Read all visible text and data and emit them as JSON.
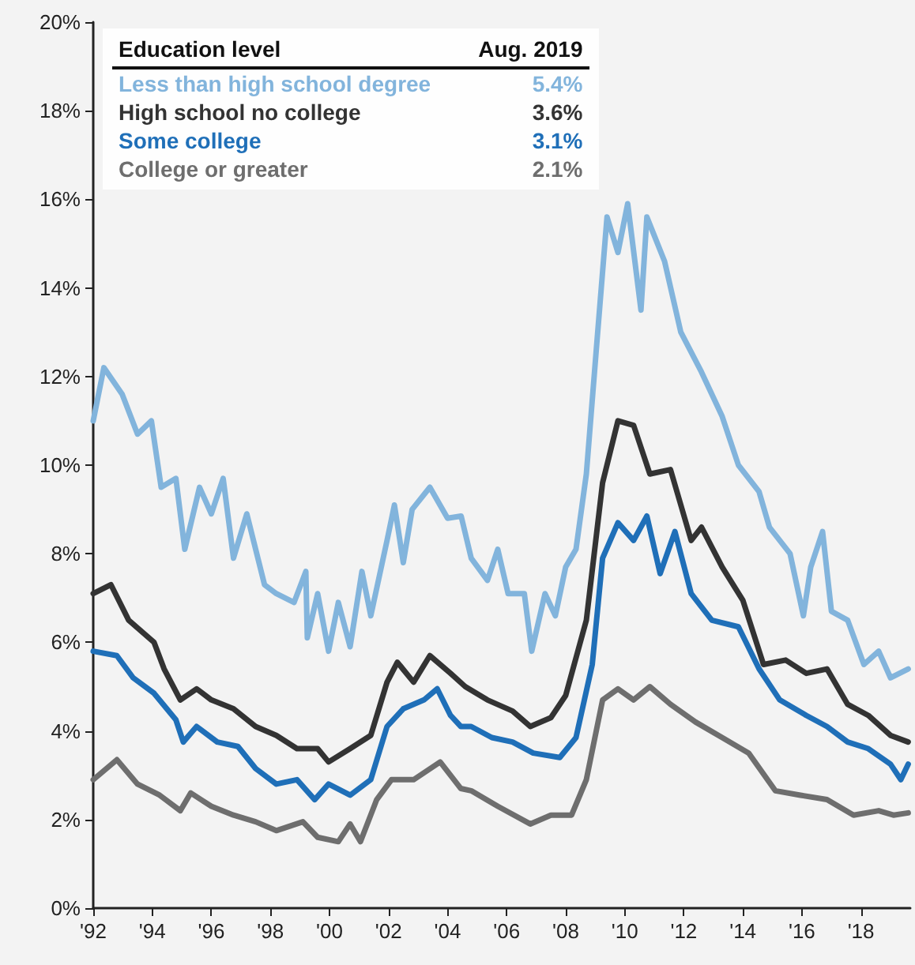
{
  "chart_data": {
    "type": "line",
    "legend_title": "Education level",
    "annotations": [
      "Aug. 2019",
      "5.4%",
      "3.6%",
      "3.1%",
      "2.1%"
    ],
    "xlim": [
      1992,
      2019.67
    ],
    "xticks": [
      {
        "value": 1992,
        "label": "'92"
      },
      {
        "value": 1994,
        "label": "'94"
      },
      {
        "value": 1996,
        "label": "'96"
      },
      {
        "value": 1998,
        "label": "'98"
      },
      {
        "value": 2000,
        "label": "'00"
      },
      {
        "value": 2002,
        "label": "'02"
      },
      {
        "value": 2004,
        "label": "'04"
      },
      {
        "value": 2006,
        "label": "'06"
      },
      {
        "value": 2008,
        "label": "'08"
      },
      {
        "value": 2010,
        "label": "'10"
      },
      {
        "value": 2012,
        "label": "'12"
      },
      {
        "value": 2014,
        "label": "'14"
      },
      {
        "value": 2016,
        "label": "'16"
      },
      {
        "value": 2018,
        "label": "'18"
      }
    ],
    "ylim": [
      0,
      20
    ],
    "yticks": [
      {
        "value": 0,
        "label": "0%"
      },
      {
        "value": 2,
        "label": "2%"
      },
      {
        "value": 4,
        "label": "4%"
      },
      {
        "value": 6,
        "label": "6%"
      },
      {
        "value": 8,
        "label": "8%"
      },
      {
        "value": 10,
        "label": "10%"
      },
      {
        "value": 12,
        "label": "12%"
      },
      {
        "value": 14,
        "label": "14%"
      },
      {
        "value": 16,
        "label": "16%"
      },
      {
        "value": 18,
        "label": "18%"
      },
      {
        "value": 20,
        "label": "20%"
      }
    ],
    "grid": false,
    "legend": "top left",
    "marker": "none",
    "line_style": "solid",
    "series": [
      {
        "name": "Less than high school degree",
        "color": "#82b4dc",
        "x": [
          1992.0,
          1992.36,
          1992.98,
          1993.5,
          1993.97,
          1994.3,
          1994.8,
          1995.1,
          1995.6,
          1996.0,
          1996.4,
          1996.75,
          1997.2,
          1997.8,
          1998.2,
          1998.8,
          1999.2,
          1999.25,
          1999.6,
          1999.97,
          2000.3,
          2000.7,
          2001.1,
          2001.4,
          2001.95,
          2002.2,
          2002.5,
          2002.8,
          2003.4,
          2004.0,
          2004.46,
          2004.8,
          2005.35,
          2005.7,
          2006.05,
          2006.6,
          2006.85,
          2007.3,
          2007.65,
          2008.0,
          2008.35,
          2008.7,
          2009.06,
          2009.4,
          2009.77,
          2010.1,
          2010.55,
          2010.75,
          2011.35,
          2011.9,
          2012.6,
          2013.3,
          2013.85,
          2014.55,
          2014.9,
          2015.6,
          2016.05,
          2016.3,
          2016.7,
          2017.0,
          2017.55,
          2018.1,
          2018.6,
          2019.0,
          2019.6
        ],
        "values": [
          11.0,
          12.2,
          11.6,
          10.7,
          11.0,
          9.5,
          9.7,
          8.1,
          9.5,
          8.9,
          9.7,
          7.9,
          8.9,
          7.3,
          7.1,
          6.9,
          7.6,
          6.1,
          7.1,
          5.8,
          6.9,
          5.9,
          7.6,
          6.6,
          8.3,
          9.1,
          7.8,
          9.0,
          9.5,
          8.8,
          8.85,
          7.9,
          7.4,
          8.1,
          7.1,
          7.1,
          5.8,
          7.1,
          6.6,
          7.7,
          8.1,
          9.8,
          12.8,
          15.6,
          14.8,
          15.9,
          13.5,
          15.6,
          14.6,
          13.0,
          12.1,
          11.1,
          10.0,
          9.4,
          8.6,
          8.0,
          6.6,
          7.7,
          8.5,
          6.7,
          6.5,
          5.5,
          5.8,
          5.2,
          5.4
        ]
      },
      {
        "name": "High school no college",
        "color": "#333333",
        "x": [
          1992.0,
          1992.6,
          1993.2,
          1994.06,
          1994.4,
          1994.95,
          1995.5,
          1996.0,
          1996.75,
          1997.5,
          1998.2,
          1998.9,
          1999.6,
          1999.97,
          2000.7,
          2001.4,
          2001.95,
          2002.3,
          2002.85,
          2003.4,
          2004.1,
          2004.6,
          2005.35,
          2006.2,
          2006.8,
          2007.5,
          2008.0,
          2008.7,
          2009.25,
          2009.77,
          2010.3,
          2010.85,
          2011.55,
          2012.25,
          2012.6,
          2013.3,
          2014.0,
          2014.7,
          2015.45,
          2016.15,
          2016.85,
          2017.55,
          2018.25,
          2019.0,
          2019.6
        ],
        "values": [
          7.1,
          7.3,
          6.5,
          6.0,
          5.4,
          4.7,
          4.95,
          4.7,
          4.5,
          4.1,
          3.9,
          3.6,
          3.6,
          3.3,
          3.6,
          3.9,
          5.1,
          5.55,
          5.1,
          5.7,
          5.3,
          5.0,
          4.7,
          4.45,
          4.1,
          4.3,
          4.8,
          6.5,
          9.6,
          11.0,
          10.9,
          9.8,
          9.9,
          8.3,
          8.6,
          7.7,
          6.95,
          5.5,
          5.6,
          5.3,
          5.4,
          4.6,
          4.35,
          3.9,
          3.75
        ]
      },
      {
        "name": "Some college",
        "color": "#1f6fb8",
        "x": [
          1992.0,
          1992.8,
          1993.35,
          1994.06,
          1994.8,
          1995.05,
          1995.5,
          1996.2,
          1996.9,
          1997.5,
          1998.2,
          1998.9,
          1999.5,
          1999.97,
          2000.7,
          2001.4,
          2001.95,
          2002.5,
          2003.2,
          2003.65,
          2004.1,
          2004.45,
          2004.8,
          2005.5,
          2006.2,
          2006.9,
          2007.8,
          2008.35,
          2008.9,
          2009.25,
          2009.77,
          2010.3,
          2010.75,
          2011.2,
          2011.7,
          2012.25,
          2012.95,
          2013.85,
          2014.55,
          2015.25,
          2016.15,
          2016.85,
          2017.55,
          2018.25,
          2019.0,
          2019.35,
          2019.6
        ],
        "values": [
          5.8,
          5.7,
          5.2,
          4.85,
          4.25,
          3.75,
          4.1,
          3.75,
          3.65,
          3.15,
          2.8,
          2.9,
          2.45,
          2.8,
          2.55,
          2.9,
          4.1,
          4.5,
          4.7,
          4.95,
          4.35,
          4.1,
          4.1,
          3.85,
          3.75,
          3.5,
          3.4,
          3.85,
          5.5,
          7.9,
          8.7,
          8.3,
          8.85,
          7.55,
          8.5,
          7.1,
          6.5,
          6.35,
          5.4,
          4.7,
          4.35,
          4.1,
          3.75,
          3.6,
          3.25,
          2.9,
          3.25
        ]
      },
      {
        "name": "College or greater",
        "color": "#6e6e6e",
        "x": [
          1992.0,
          1992.8,
          1993.5,
          1994.25,
          1994.95,
          1995.3,
          1996.0,
          1996.75,
          1997.5,
          1998.2,
          1999.1,
          1999.6,
          2000.3,
          2000.7,
          2001.05,
          2001.6,
          2002.1,
          2002.85,
          2003.75,
          2004.45,
          2004.8,
          2005.7,
          2006.8,
          2007.5,
          2008.2,
          2008.7,
          2009.25,
          2009.77,
          2010.3,
          2010.85,
          2011.55,
          2012.4,
          2013.3,
          2014.2,
          2015.1,
          2015.95,
          2016.85,
          2017.75,
          2018.6,
          2019.1,
          2019.6
        ],
        "values": [
          2.9,
          3.35,
          2.8,
          2.55,
          2.2,
          2.6,
          2.3,
          2.1,
          1.95,
          1.75,
          1.95,
          1.6,
          1.5,
          1.9,
          1.5,
          2.45,
          2.9,
          2.9,
          3.3,
          2.7,
          2.65,
          2.3,
          1.9,
          2.1,
          2.1,
          2.9,
          4.7,
          4.95,
          4.7,
          5.0,
          4.6,
          4.2,
          3.85,
          3.5,
          2.65,
          2.55,
          2.45,
          2.1,
          2.2,
          2.1,
          2.15
        ]
      }
    ]
  }
}
